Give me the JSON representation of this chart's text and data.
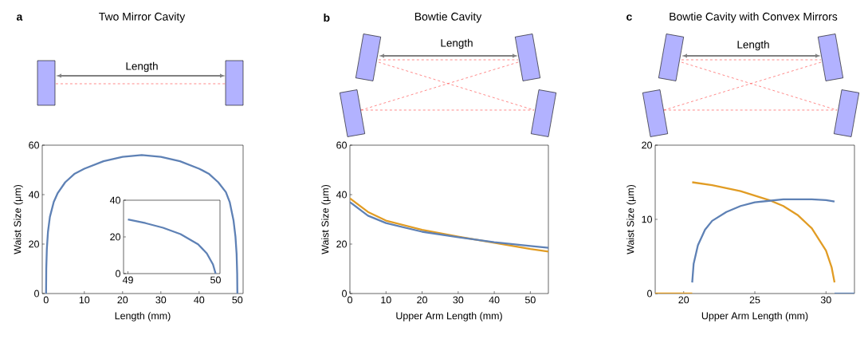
{
  "chart_data": [
    {
      "type": "line",
      "title": "Two Mirror Cavity",
      "xlabel": "Length (mm)",
      "ylabel": "Waist Size (μm)",
      "annotations": [
        "a",
        "Length"
      ],
      "color": "#5e81b5",
      "x": [
        0,
        0.05,
        0.2,
        0.5,
        1,
        2,
        3,
        5,
        7.5,
        10,
        15,
        20,
        25,
        30,
        35,
        40,
        42.5,
        45,
        47,
        48,
        49,
        49.5,
        49.8,
        49.95,
        50
      ],
      "values": [
        0,
        10,
        18,
        25,
        31,
        37,
        40.5,
        45,
        48.5,
        50.5,
        53.5,
        55.3,
        56,
        55.3,
        53.5,
        50.5,
        48.5,
        45,
        41,
        37,
        29.5,
        23,
        16,
        8,
        0
      ],
      "xlim": [
        -1,
        51.5
      ],
      "ylim": [
        0,
        60
      ],
      "xticks": [
        0,
        10,
        20,
        30,
        40,
        50
      ],
      "yticks": [
        0,
        20,
        40,
        60
      ]
    },
    {
      "type": "line",
      "color": "#5e81b5",
      "x": [
        49,
        49.2,
        49.4,
        49.6,
        49.8,
        49.9,
        49.97,
        50
      ],
      "values": [
        29.5,
        27.5,
        25,
        21.5,
        16,
        11,
        5,
        0
      ],
      "xlim": [
        48.95,
        50.05
      ],
      "ylim": [
        0,
        40
      ],
      "xticks": [
        49,
        50
      ],
      "yticks": [
        0,
        20,
        40
      ]
    },
    {
      "type": "line",
      "title": "Bowtie Cavity",
      "xlabel": "Upper Arm Length (mm)",
      "ylabel": "Waist Size (μm)",
      "annotations": [
        "b",
        "Length"
      ],
      "x": [
        0,
        5,
        10,
        20,
        30,
        40,
        50,
        55
      ],
      "series": [
        {
          "color": "#e19c24",
          "values": [
            38.5,
            33,
            29.5,
            25.8,
            23,
            20.5,
            18,
            17
          ]
        },
        {
          "color": "#5e81b5",
          "values": [
            37,
            31.5,
            28.5,
            25,
            22.8,
            20.8,
            19.2,
            18.5
          ]
        }
      ],
      "xlim": [
        0,
        55
      ],
      "ylim": [
        0,
        60
      ],
      "xticks": [
        0,
        10,
        20,
        30,
        40,
        50
      ],
      "yticks": [
        0,
        20,
        40,
        60
      ]
    },
    {
      "type": "line",
      "title": "Bowtie Cavity with Convex Mirrors",
      "xlabel": "Upper Arm Length (mm)",
      "ylabel": "Waist Size (μm)",
      "annotations": [
        "c",
        "Length"
      ],
      "series": [
        {
          "color": "#e19c24",
          "x": [
            18,
            20.6
          ],
          "values": [
            0,
            0
          ]
        },
        {
          "color": "#e19c24",
          "x": [
            20.6,
            22,
            24,
            26,
            27,
            28,
            29,
            30,
            30.4,
            30.6
          ],
          "values": [
            15,
            14.6,
            13.8,
            12.6,
            11.8,
            10.6,
            8.8,
            5.8,
            3.5,
            1.5
          ]
        },
        {
          "color": "#5e81b5",
          "x": [
            20.6,
            20.7,
            21,
            21.5,
            22,
            23,
            24,
            25,
            26,
            27,
            28,
            29,
            30,
            30.6
          ],
          "values": [
            1.5,
            4,
            6.5,
            8.6,
            9.8,
            11,
            11.8,
            12.3,
            12.5,
            12.7,
            12.7,
            12.7,
            12.6,
            12.4
          ]
        },
        {
          "color": "#5e81b5",
          "x": [
            30.6,
            32
          ],
          "values": [
            0,
            0
          ]
        }
      ],
      "xlim": [
        18,
        32
      ],
      "ylim": [
        0,
        20
      ],
      "xticks": [
        20,
        25,
        30
      ],
      "yticks": [
        0,
        10,
        20
      ]
    }
  ]
}
